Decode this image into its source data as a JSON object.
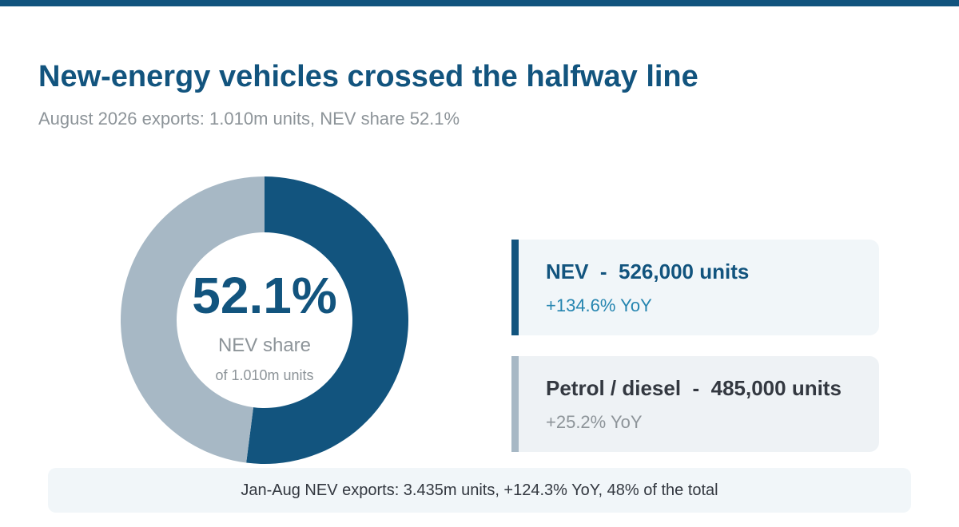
{
  "header": {
    "title": "New-energy vehicles crossed the halfway line",
    "subtitle": "August 2026 exports: 1.010m units, NEV share 52.1%"
  },
  "donut_center": {
    "value": "52.1%",
    "label": "NEV share",
    "sublabel": "of 1.010m units"
  },
  "cards": {
    "nev": {
      "title": "NEV  -  526,000 units",
      "yoy": "+134.6% YoY"
    },
    "ice": {
      "title": "Petrol / diesel  -  485,000 units",
      "yoy": "+25.2% YoY"
    }
  },
  "footer": {
    "text": "Jan-Aug NEV exports: 3.435m units, +124.3% YoY, 48% of the total"
  },
  "colors": {
    "accent": "#12547e",
    "secondary": "#a7b8c5",
    "yoy_positive": "#2585b0",
    "muted_text": "#8d9499"
  },
  "chart_data": {
    "type": "pie",
    "categories": [
      "NEV",
      "Petrol / diesel"
    ],
    "values": [
      526000,
      485000
    ],
    "colors": [
      "#12547e",
      "#a7b8c5"
    ]
  }
}
